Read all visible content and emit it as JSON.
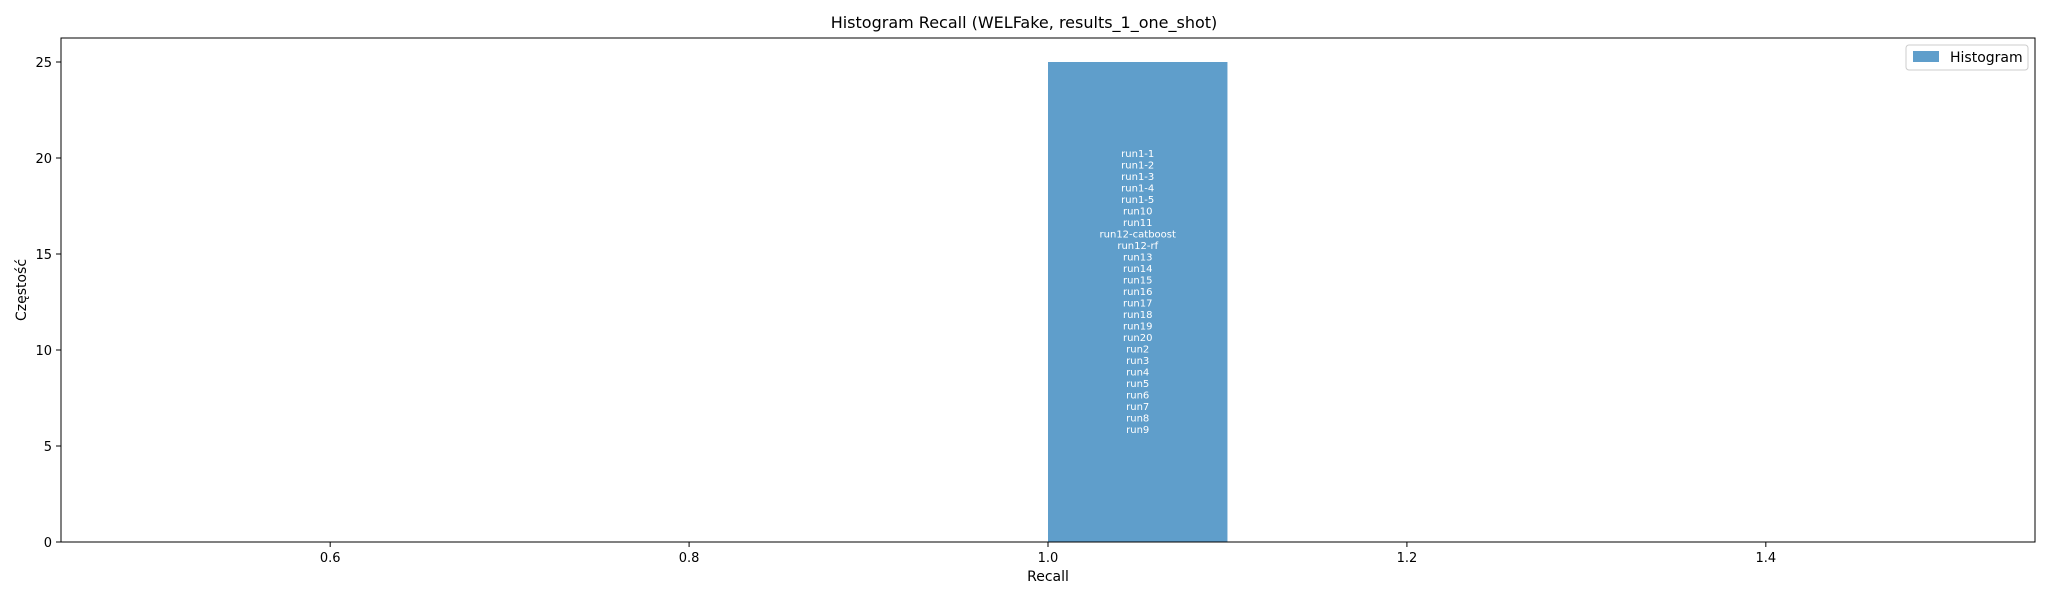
{
  "chart_data": {
    "type": "bar",
    "title": "Histogram Recall (WELFake, results_1_one_shot)",
    "xlabel": "Recall",
    "ylabel": "Częstość",
    "xlim": [
      0.45,
      1.55
    ],
    "ylim": [
      0,
      26.25
    ],
    "x_ticks": [
      "0.6",
      "0.8",
      "1.0",
      "1.2",
      "1.4"
    ],
    "y_ticks": [
      "0",
      "5",
      "10",
      "15",
      "20",
      "25"
    ],
    "legend": {
      "position": "top-right",
      "entries": [
        "Histogram"
      ]
    },
    "grid": false,
    "series": [
      {
        "name": "Histogram",
        "color": "#5f9ecb",
        "bins": [
          {
            "x0": 1.0,
            "x1": 1.1,
            "value": 25
          }
        ]
      }
    ],
    "annotations": [
      "run1-1",
      "run1-2",
      "run1-3",
      "run1-4",
      "run1-5",
      "run10",
      "run11",
      "run12-catboost",
      "run12-rf",
      "run13",
      "run14",
      "run15",
      "run16",
      "run17",
      "run18",
      "run19",
      "run20",
      "run2",
      "run3",
      "run4",
      "run5",
      "run6",
      "run7",
      "run8",
      "run9"
    ]
  }
}
